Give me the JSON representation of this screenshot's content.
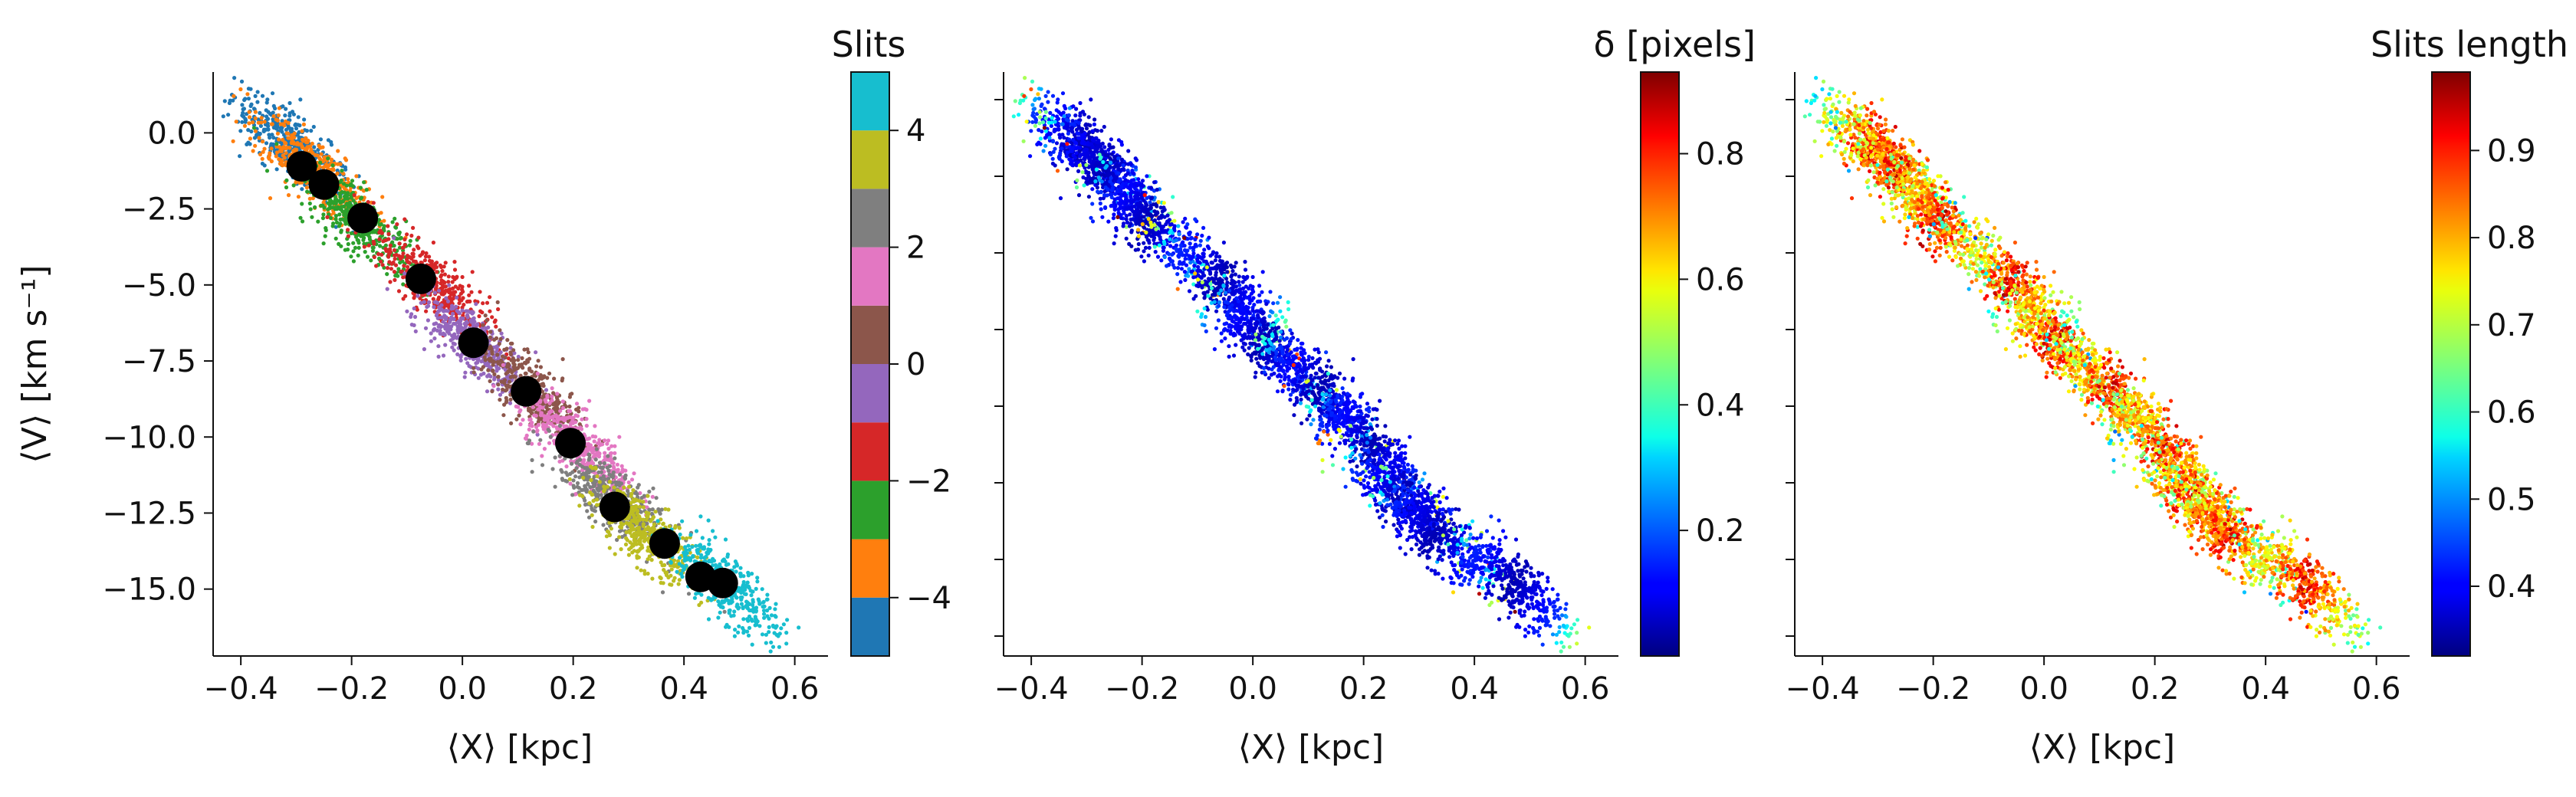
{
  "figure": {
    "xlabel": "⟨X⟩ [kpc]",
    "ylabel": "⟨V⟩ [km s⁻¹]",
    "xticks": [
      -0.4,
      -0.2,
      0.0,
      0.2,
      0.4,
      0.6
    ],
    "xtick_labels": [
      "−0.4",
      "−0.2",
      "0.0",
      "0.2",
      "0.4",
      "0.6"
    ],
    "ylim": [
      -17.2,
      2.0
    ],
    "xlim": [
      -0.45,
      0.66
    ],
    "yticks_left": [
      0.0,
      -2.5,
      -5.0,
      -7.5,
      -10.0,
      -12.5,
      -15.0
    ],
    "ytick_labels_left": [
      "0.0",
      "−2.5",
      "−5.0",
      "−7.5",
      "−10.0",
      "−12.5",
      "−15.0"
    ],
    "yticks_other": [
      4,
      2,
      0,
      -2,
      -4
    ],
    "ytick_labels_other": [
      "",
      "",
      "",
      "",
      ""
    ]
  },
  "chart_data": [
    {
      "type": "scatter",
      "panel": "left",
      "color_by": "slit",
      "colorbar": {
        "title": "Slits",
        "kind": "discrete",
        "range": [
          -5,
          5
        ],
        "ticks": [
          4,
          2,
          0,
          -2,
          -4
        ],
        "tick_labels": [
          "4",
          "2",
          "0",
          "−2",
          "−4"
        ],
        "colors": [
          "#1f77b4",
          "#ff7f0e",
          "#2ca02c",
          "#d62728",
          "#9467bd",
          "#8c564b",
          "#e377c2",
          "#7f7f7f",
          "#bcbd22",
          "#17becf"
        ]
      },
      "slit_clouds": [
        {
          "slit": -5,
          "x": -0.31,
          "y": -0.4
        },
        {
          "slit": -4,
          "x": -0.27,
          "y": -1.2
        },
        {
          "slit": -3,
          "x": -0.19,
          "y": -2.9
        },
        {
          "slit": -2,
          "x": -0.06,
          "y": -4.9
        },
        {
          "slit": -1,
          "x": 0.02,
          "y": -6.9
        },
        {
          "slit": 0,
          "x": 0.12,
          "y": -8.4
        },
        {
          "slit": 1,
          "x": 0.21,
          "y": -10.3
        },
        {
          "slit": 2,
          "x": 0.27,
          "y": -12.0
        },
        {
          "slit": 3,
          "x": 0.33,
          "y": -13.2
        },
        {
          "slit": 4,
          "x": 0.47,
          "y": -14.8
        }
      ],
      "mean_points": [
        {
          "x": -0.29,
          "y": -1.1
        },
        {
          "x": -0.25,
          "y": -1.7
        },
        {
          "x": -0.18,
          "y": -2.8
        },
        {
          "x": -0.075,
          "y": -4.8
        },
        {
          "x": 0.02,
          "y": -6.9
        },
        {
          "x": 0.115,
          "y": -8.5
        },
        {
          "x": 0.195,
          "y": -10.2
        },
        {
          "x": 0.275,
          "y": -12.3
        },
        {
          "x": 0.365,
          "y": -13.5
        },
        {
          "x": 0.43,
          "y": -14.6
        },
        {
          "x": 0.47,
          "y": -14.8
        }
      ]
    },
    {
      "type": "scatter",
      "panel": "middle",
      "color_by": "delta_pixels",
      "colormap": "jet",
      "colorbar": {
        "title": "δ [pixels]",
        "kind": "continuous",
        "range": [
          0.0,
          0.93
        ],
        "ticks": [
          0.8,
          0.6,
          0.4,
          0.2
        ],
        "tick_labels": [
          "0.8",
          "0.6",
          "0.4",
          "0.2"
        ]
      }
    },
    {
      "type": "scatter",
      "panel": "right",
      "color_by": "slit_length",
      "colormap": "jet",
      "colorbar": {
        "title": "Slits length",
        "kind": "continuous",
        "range": [
          0.32,
          0.99
        ],
        "ticks": [
          0.9,
          0.8,
          0.7,
          0.6,
          0.5,
          0.4
        ],
        "tick_labels": [
          "0.9",
          "0.8",
          "0.7",
          "0.6",
          "0.5",
          "0.4"
        ]
      }
    }
  ]
}
